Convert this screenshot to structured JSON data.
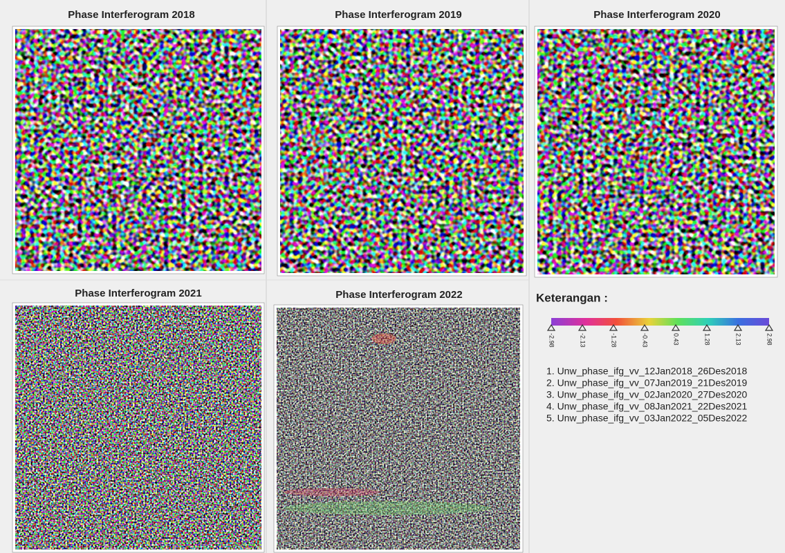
{
  "panels": [
    {
      "title": "Phase Interferogram 2018"
    },
    {
      "title": "Phase Interferogram 2019"
    },
    {
      "title": "Phase Interferogram 2020"
    },
    {
      "title": "Phase Interferogram 2021"
    },
    {
      "title": "Phase Interferogram 2022"
    }
  ],
  "legend": {
    "title": "Keterangan :",
    "colorbar_ticks": [
      "-2.98",
      "-2.13",
      "-1.28",
      "-0.43",
      "0.43",
      "1.28",
      "2.13",
      "2.98"
    ],
    "items": [
      "1. Unw_phase_ifg_vv_12Jan2018_26Des2018",
      "2. Unw_phase_ifg_vv_07Jan2019_21Des2019",
      "3. Unw_phase_ifg_vv_02Jan2020_27Des2020",
      "4. Unw_phase_ifg_vv_08Jan2021_22Des2021",
      "5. Unw_phase_ifg_vv_03Jan2022_05Des2022"
    ]
  }
}
